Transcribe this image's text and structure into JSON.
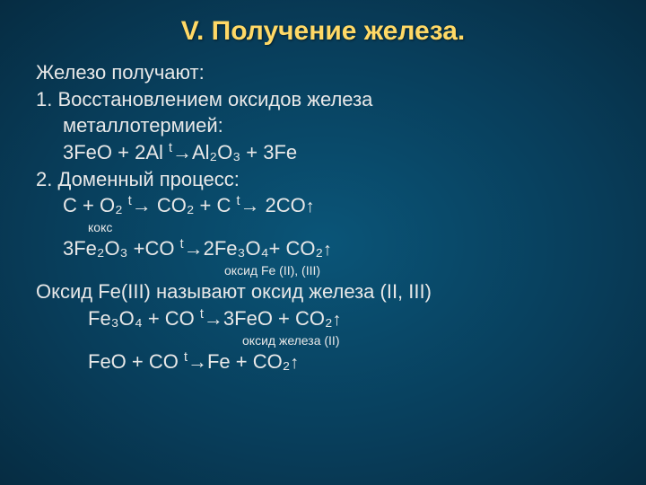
{
  "colors": {
    "background_center": "#0a5578",
    "background_edge": "#062c42",
    "title_color": "#ffd966",
    "text_color": "#e8e8e8"
  },
  "typography": {
    "title_fontsize": 30,
    "body_fontsize": 22,
    "note_fontsize": 14,
    "font_family": "Arial"
  },
  "title": "V. Получение железа.",
  "intro": "Железо получают:",
  "item1_a": "1.  Восстановлением оксидов железа",
  "item1_b": "металлотермией:",
  "eq1_lhs": "3FeO + 2Al ",
  "eq1_rhs": "Al₂O₃ + 3Fe",
  "item2": "2.    Доменный процесс:",
  "eq2a_lhs": "C + O₂ ",
  "eq2a_mid": " CO₂ + C ",
  "eq2a_rhs": " 2CO",
  "note_koks": "кокс",
  "eq3_lhs": "3Fe₂O₃ +CO ",
  "eq3_rhs": "2Fe₃O₄+ CO₂",
  "note_oxide23": "оксид Fe (II), (III)",
  "line_oxide_name": "Оксид Fe(III) называют оксид железа (II, III)",
  "eq4_lhs": "Fe₃O₄ + CO ",
  "eq4_rhs": "3FeO + CO₂",
  "note_oxide2": "оксид железа (II)",
  "eq5_lhs": "FeO + CO ",
  "eq5_rhs": "Fe + CO₂",
  "arrow_t_label": "t"
}
